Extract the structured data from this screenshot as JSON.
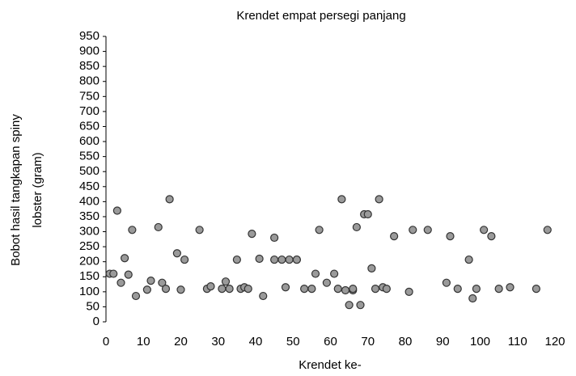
{
  "chart_data": {
    "type": "scatter",
    "title": "Krendet empat persegi panjang",
    "xlabel": "Krendet ke-",
    "ylabel": [
      "Bobot hasil tangkapan spiny",
      "lobster (gram)"
    ],
    "x": [
      1,
      2,
      3,
      4,
      5,
      6,
      7,
      8,
      11,
      12,
      14,
      15,
      16,
      17,
      19,
      20,
      21,
      25,
      27,
      28,
      31,
      32,
      33,
      35,
      36,
      37,
      38,
      39,
      41,
      42,
      45,
      45,
      47,
      48,
      49,
      51,
      51,
      53,
      55,
      56,
      57,
      59,
      61,
      62,
      63,
      64,
      65,
      66,
      66,
      67,
      68,
      69,
      70,
      71,
      72,
      73,
      74,
      75,
      77,
      81,
      82,
      86,
      91,
      92,
      94,
      97,
      98,
      99,
      101,
      103,
      105,
      108,
      115,
      118
    ],
    "values": [
      160,
      160,
      370,
      130,
      212,
      157,
      306,
      86,
      107,
      137,
      315,
      130,
      110,
      408,
      228,
      107,
      207,
      306,
      110,
      118,
      110,
      134,
      110,
      207,
      110,
      115,
      110,
      293,
      210,
      86,
      207,
      280,
      207,
      115,
      207,
      207,
      207,
      110,
      110,
      160,
      306,
      130,
      160,
      110,
      408,
      105,
      56,
      105,
      110,
      315,
      56,
      358,
      358,
      178,
      110,
      408,
      115,
      110,
      285,
      100,
      306,
      306,
      130,
      285,
      110,
      207,
      78,
      110,
      306,
      285,
      110,
      115,
      110,
      306
    ],
    "color": "#9a9a9a",
    "xlim": [
      0,
      120
    ],
    "xticks": [
      0,
      10,
      20,
      30,
      40,
      50,
      60,
      70,
      80,
      90,
      100,
      110,
      120
    ],
    "ylim": [
      0,
      950
    ],
    "yticks": [
      0,
      50,
      100,
      150,
      200,
      250,
      300,
      350,
      400,
      450,
      500,
      550,
      600,
      650,
      700,
      750,
      800,
      850,
      900,
      950
    ]
  }
}
